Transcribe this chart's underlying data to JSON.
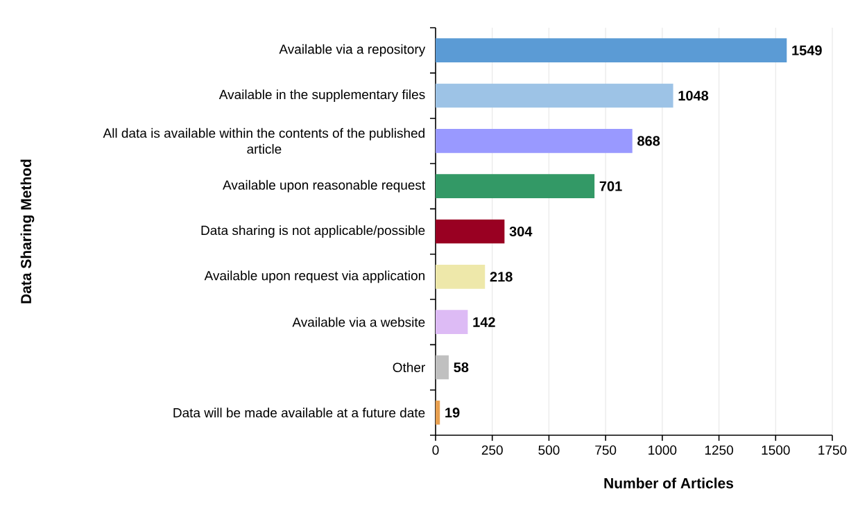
{
  "chart_data": {
    "type": "bar",
    "orientation": "horizontal",
    "xlabel": "Number of Articles",
    "ylabel": "Data Sharing Method",
    "categories": [
      "Available via a repository",
      "Available in the supplementary files",
      "All data is available within the contents of the published article",
      "Available upon reasonable request",
      "Data sharing is not applicable/possible",
      "Available upon request via application",
      "Available via a website",
      "Other",
      "Data will be made available at a future date"
    ],
    "values": [
      1549,
      1048,
      868,
      701,
      304,
      218,
      142,
      58,
      19
    ],
    "colors": [
      "#5b9bd5",
      "#9dc3e6",
      "#9999ff",
      "#339966",
      "#990022",
      "#eee8aa",
      "#ddbbf5",
      "#c0c0c0",
      "#e8a050"
    ],
    "xlim": [
      0,
      1750
    ],
    "xticks": [
      0,
      250,
      500,
      750,
      1000,
      1250,
      1500,
      1750
    ],
    "grid": "x",
    "data_labels": true
  }
}
